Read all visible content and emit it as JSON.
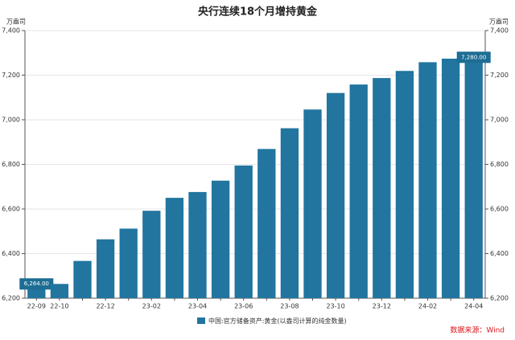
{
  "chart_data": {
    "type": "bar",
    "title": "央行连续18个月增持黄金",
    "y_unit": "万盎司",
    "y2_unit": "万盎司",
    "categories": [
      "22-09",
      "22-10",
      null,
      "22-12",
      null,
      "23-02",
      null,
      "23-04",
      null,
      "23-06",
      null,
      "23-08",
      null,
      "23-10",
      null,
      "23-12",
      null,
      "24-02",
      null,
      "24-04"
    ],
    "series": [
      {
        "name": "中国:官方储备资产:黄金(以盎司计算的纯金数量)",
        "color": "#21759f",
        "values": [
          6264,
          6264,
          6367,
          6464,
          6512,
          6592,
          6650,
          6676,
          6727,
          6795,
          6869,
          6962,
          7046,
          7120,
          7158,
          7187,
          7219,
          7258,
          7274,
          7280
        ],
        "value_labels": [
          "6,264.00",
          null,
          null,
          null,
          null,
          null,
          null,
          null,
          null,
          null,
          null,
          null,
          null,
          null,
          null,
          null,
          null,
          null,
          null,
          "7,280.00"
        ]
      }
    ],
    "ylim": [
      6200,
      7400
    ],
    "yticks": [
      {
        "value": 6200,
        "label": "6,200"
      },
      {
        "value": 6400,
        "label": "6,400"
      },
      {
        "value": 6600,
        "label": "6,600"
      },
      {
        "value": 6800,
        "label": "6,800"
      },
      {
        "value": 7000,
        "label": "7,000"
      },
      {
        "value": 7200,
        "label": "7,200"
      },
      {
        "value": 7400,
        "label": "7,400"
      }
    ],
    "y2lim": [
      6200,
      7400
    ],
    "y2ticks": [
      {
        "value": 6200,
        "label": "6,200"
      },
      {
        "value": 6400,
        "label": "6,400"
      },
      {
        "value": 6600,
        "label": "6,600"
      },
      {
        "value": 6800,
        "label": "6,800"
      },
      {
        "value": 7000,
        "label": "7,000"
      },
      {
        "value": 7200,
        "label": "7,200"
      },
      {
        "value": 7400,
        "label": "7,400"
      }
    ],
    "grid": true,
    "legend": "bottom",
    "source": "数据来源：Wind"
  }
}
